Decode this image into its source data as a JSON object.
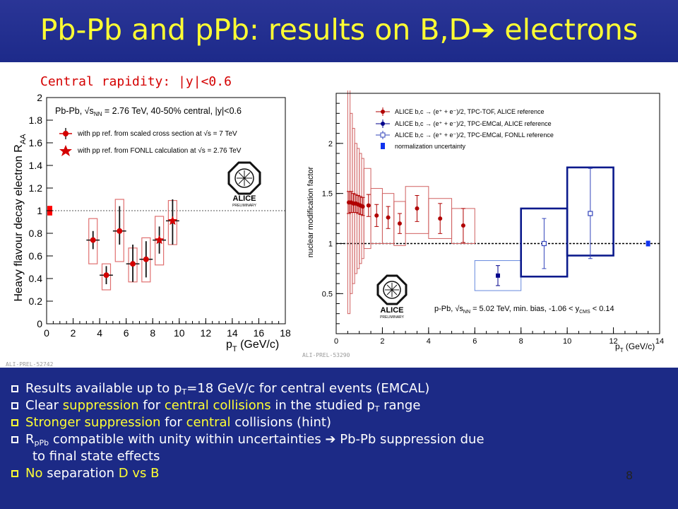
{
  "slide": {
    "title": "Pb-Pb and pPb: results on B,D➔ electrons",
    "subtitle": "Central rapidity: |y|<0.6",
    "page_number": "8",
    "left_figure_tag": "ALI-PREL-52742",
    "right_figure_tag": "ALI-PREL-53290",
    "logo_text": "ALICE",
    "logo_sub": "PRELIMINARY"
  },
  "bullets": {
    "b1": {
      "t1": "Results available up to p",
      "sub": "T",
      "t2": "=18 GeV/c  for central events (EMCAL)"
    },
    "b2": {
      "t1": "Clear ",
      "h1": "suppression",
      "t2": " for ",
      "h2": "central collisions",
      "t3": " in the studied p",
      "sub": "T",
      "t4": " range"
    },
    "b3": {
      "h1": "Stronger suppression",
      "t1": " for ",
      "h2": "central",
      "t2": " collisions (hint)"
    },
    "b4": {
      "t1": "R",
      "sub": "pPb",
      "t2": " compatible with unity within uncertainties  ➔ Pb-Pb suppression due",
      "t3": "to final state effects"
    },
    "b5": {
      "h1": "No",
      "t1": " separation ",
      "h2": "D vs B"
    }
  },
  "colors": {
    "title": "#ffff33",
    "background": "#1c2a86",
    "red": "#d40000",
    "blue": "#00008b",
    "box_red": "#e07070"
  },
  "chart_data": [
    {
      "type": "scatter",
      "title": "",
      "xlabel": "p_T (GeV/c)",
      "ylabel": "Heavy flavour decay electron R_AA",
      "xlim": [
        0,
        18
      ],
      "ylim": [
        0,
        2
      ],
      "xticks": [
        "0",
        "2",
        "4",
        "6",
        "8",
        "10",
        "12",
        "14",
        "16",
        "18"
      ],
      "yticks": [
        "0",
        "0.2",
        "0.4",
        "0.6",
        "0.8",
        "1",
        "1.2",
        "1.4",
        "1.6",
        "1.8",
        "2"
      ],
      "legend": {
        "header": "Pb-Pb, √s_NN = 2.76 TeV, 40-50% central, |y|<0.6",
        "items": [
          "with pp ref. from scaled cross section at √s = 7 TeV",
          "with pp ref. from FONLL calculation at √s = 2.76 TeV"
        ]
      },
      "reference_line": 1,
      "normalization_box": [
        0.97,
        1.03
      ],
      "series": [
        {
          "name": "with pp ref. from scaled cross section at √s = 7 TeV",
          "marker": "circle",
          "x": [
            3.5,
            4.5,
            5.5,
            6.5,
            7.5
          ],
          "y": [
            0.74,
            0.43,
            0.82,
            0.53,
            0.57
          ],
          "stat_lo": [
            0.66,
            0.35,
            0.7,
            0.37,
            0.41
          ],
          "stat_hi": [
            0.82,
            0.51,
            1.04,
            0.7,
            0.73
          ],
          "sys_lo": [
            0.53,
            0.3,
            0.55,
            0.37,
            0.37
          ],
          "sys_hi": [
            0.93,
            0.53,
            1.1,
            0.67,
            0.76
          ]
        },
        {
          "name": "with pp ref. from FONLL calculation at √s = 2.76 TeV",
          "marker": "star",
          "x": [
            8.5,
            9.5
          ],
          "y": [
            0.74,
            0.91
          ],
          "stat_lo": [
            0.62,
            0.7
          ],
          "stat_hi": [
            0.86,
            1.1
          ],
          "sys_lo": [
            0.52,
            0.7
          ],
          "sys_hi": [
            0.95,
            1.09
          ]
        }
      ]
    },
    {
      "type": "scatter",
      "title": "",
      "xlabel": "p_T (GeV/c)",
      "ylabel": "nuclear modification factor",
      "xlim": [
        0,
        14
      ],
      "ylim": [
        0.1,
        2.5
      ],
      "xticks": [
        "0",
        "2",
        "4",
        "6",
        "8",
        "10",
        "12",
        "14"
      ],
      "yticks": [
        "0.5",
        "1",
        "1.5",
        "2"
      ],
      "legend": {
        "items": [
          "ALICE b,c → (e⁺ + e⁻)/2, TPC-TOF, ALICE reference",
          "ALICE b,c → (e⁺ + e⁻)/2, TPC-EMCal, ALICE reference",
          "ALICE b,c → (e⁺ + e⁻)/2, TPC-EMCal, FONLL reference",
          "normalization uncertainty"
        ]
      },
      "annotation": "p-Pb, √s_NN = 5.02 TeV, min. bias, -1.06 < y_CMS < 0.14",
      "reference_line": 1,
      "normalization_point": {
        "x": 13.5,
        "y": 1.0
      },
      "series": [
        {
          "name": "ALICE b,c → (e⁺ + e⁻)/2, TPC-TOF, ALICE reference",
          "marker": "circle",
          "x": [
            0.55,
            0.65,
            0.75,
            0.85,
            0.95,
            1.05,
            1.15,
            1.4,
            1.75,
            2.25,
            2.75,
            3.5,
            4.5,
            5.5
          ],
          "y": [
            1.41,
            1.41,
            1.4,
            1.4,
            1.39,
            1.38,
            1.37,
            1.38,
            1.28,
            1.26,
            1.2,
            1.35,
            1.25,
            1.18
          ],
          "stat_lo": [
            1.3,
            1.31,
            1.31,
            1.31,
            1.3,
            1.29,
            1.28,
            1.27,
            1.17,
            1.15,
            1.1,
            1.22,
            1.1,
            1.01
          ],
          "stat_hi": [
            1.52,
            1.52,
            1.5,
            1.49,
            1.48,
            1.47,
            1.46,
            1.49,
            1.39,
            1.37,
            1.3,
            1.48,
            1.4,
            1.35
          ],
          "sys_x": [
            [
              0.5,
              0.6
            ],
            [
              0.6,
              0.7
            ],
            [
              0.7,
              0.8
            ],
            [
              0.8,
              0.9
            ],
            [
              0.9,
              1.0
            ],
            [
              1.0,
              1.1
            ],
            [
              1.1,
              1.2
            ],
            [
              1.2,
              1.5
            ],
            [
              1.5,
              2.0
            ],
            [
              2.0,
              2.5
            ],
            [
              2.5,
              3.0
            ],
            [
              3.0,
              4.0
            ],
            [
              4.0,
              5.0
            ],
            [
              5.0,
              6.0
            ]
          ],
          "sys_lo": [
            0.3,
            0.5,
            0.6,
            0.7,
            0.75,
            0.8,
            0.85,
            0.95,
            1.0,
            1.0,
            0.98,
            1.1,
            1.05,
            1.0
          ],
          "sys_hi": [
            2.55,
            2.3,
            2.15,
            2.0,
            1.95,
            1.9,
            1.85,
            1.75,
            1.55,
            1.5,
            1.42,
            1.57,
            1.45,
            1.35
          ]
        },
        {
          "name": "ALICE b,c → (e⁺ + e⁻)/2, TPC-EMCal, ALICE reference",
          "marker": "circle-blue",
          "x": [
            7.0
          ],
          "y": [
            0.68
          ],
          "stat_lo": [
            0.58
          ],
          "stat_hi": [
            0.78
          ],
          "sys_x": [
            [
              6.0,
              8.0
            ]
          ],
          "sys_lo": [
            0.53
          ],
          "sys_hi": [
            0.83
          ]
        },
        {
          "name": "ALICE b,c → (e⁺ + e⁻)/2, TPC-EMCal, FONLL reference",
          "marker": "open-square",
          "x": [
            9.0,
            11.0
          ],
          "y": [
            1.0,
            1.3
          ],
          "stat_lo": [
            0.75,
            0.85
          ],
          "stat_hi": [
            1.25,
            1.75
          ],
          "sys_x": [
            [
              8.0,
              10.0
            ],
            [
              10.0,
              12.0
            ]
          ],
          "sys_lo": [
            0.67,
            0.88
          ],
          "sys_hi": [
            1.35,
            1.76
          ]
        }
      ]
    }
  ]
}
